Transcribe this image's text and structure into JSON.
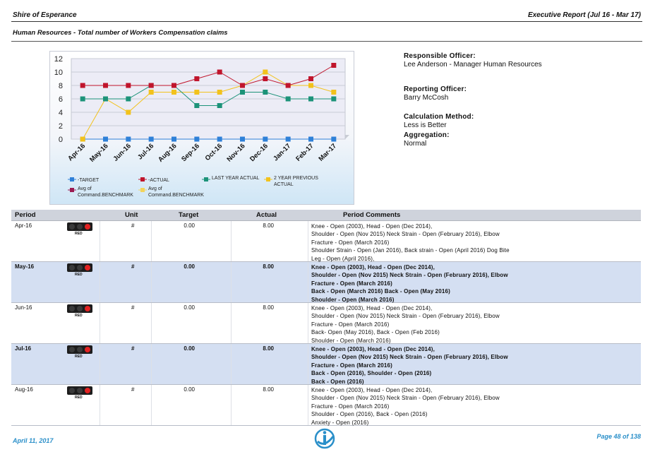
{
  "header": {
    "org": "Shire of Esperance",
    "report": "Executive Report (Jul 16 - Mar 17)"
  },
  "subtitle": "Human Resources - Total number of Workers Compensation claims",
  "info": {
    "responsible_label": "Responsible Officer:",
    "responsible_value": "Lee Anderson - Manager Human Resources",
    "reporting_label": "Reporting Officer:",
    "reporting_value": "Barry McCosh",
    "calc_label": "Calculation Method:",
    "calc_value": "Less is Better",
    "agg_label": "Aggregation:",
    "agg_value": "Normal"
  },
  "chart_data": {
    "type": "line",
    "categories": [
      "Apr-16",
      "May-16",
      "Jun-16",
      "Jul-16",
      "Aug-16",
      "Sep-16",
      "Oct-16",
      "Nov-16",
      "Dec-16",
      "Jan-17",
      "Feb-17",
      "Mar-17"
    ],
    "ylim": [
      0,
      12
    ],
    "yticks": [
      0,
      2,
      4,
      6,
      8,
      10,
      12
    ],
    "grid": true,
    "legend_position": "bottom",
    "series": [
      {
        "name": "TARGET",
        "color": "#2f80d8",
        "values": [
          0,
          0,
          0,
          0,
          0,
          0,
          0,
          0,
          0,
          0,
          0,
          0
        ]
      },
      {
        "name": "ACTUAL",
        "color": "#c0152c",
        "values": [
          8,
          8,
          8,
          8,
          8,
          9,
          10,
          8,
          9,
          8,
          9,
          11
        ]
      },
      {
        "name": "LAST YEAR ACTUAL",
        "color": "#1c9379",
        "values": [
          6,
          6,
          6,
          8,
          8,
          5,
          5,
          7,
          7,
          6,
          6,
          6
        ]
      },
      {
        "name": "2 YEAR PREVIOUS ACTUAL",
        "color": "#f2c21c",
        "values": [
          0,
          6,
          4,
          7,
          7,
          7,
          7,
          8,
          10,
          8,
          8,
          7
        ]
      }
    ],
    "extra_legend": [
      {
        "name": "Avg of Command.BENCHMARK",
        "color": "#9b1a52"
      },
      {
        "name": "Avg of Command.BENCHMARK",
        "color": "#f2d45c"
      }
    ]
  },
  "table": {
    "headers": {
      "period": "Period",
      "unit": "Unit",
      "target": "Target",
      "actual": "Actual",
      "comments": "Period Comments"
    },
    "status_label": "RED",
    "rows": [
      {
        "period": "Apr-16",
        "unit": "#",
        "target": "0.00",
        "actual": "8.00",
        "comments": [
          "Knee - Open (2003), Head - Open (Dec 2014),",
          "Shoulder - Open (Nov 2015) Neck Strain - Open (February 2016), Elbow",
          "Fracture - Open (March 2016)",
          "Shoulder Strain - Open (Jan 2016), Back strain - Open (April 2016) Dog Bite",
          "Leg - Open (April 2016),"
        ]
      },
      {
        "period": "May-16",
        "unit": "#",
        "target": "0.00",
        "actual": "8.00",
        "comments": [
          "Knee - Open (2003), Head - Open (Dec 2014),",
          "Shoulder - Open (Nov 2015) Neck Strain - Open (February 2016), Elbow",
          "Fracture - Open (March 2016)",
          "Back - Open (March 2016) Back - Open (May 2016)",
          "Shoulder - Open (March 2016)"
        ]
      },
      {
        "period": "Jun-16",
        "unit": "#",
        "target": "0.00",
        "actual": "8.00",
        "comments": [
          "Knee - Open (2003), Head - Open (Dec 2014),",
          "Shoulder - Open (Nov 2015) Neck Strain - Open (February 2016), Elbow",
          "Fracture - Open (March 2016)",
          "Back- Open (May 2016), Back - Open (Feb 2016)",
          "Shoulder - Open (March 2016)"
        ]
      },
      {
        "period": "Jul-16",
        "unit": "#",
        "target": "0.00",
        "actual": "8.00",
        "comments": [
          "Knee - Open (2003), Head - Open (Dec 2014),",
          "Shoulder - Open (Nov 2015) Neck Strain - Open (February 2016), Elbow",
          "Fracture - Open (March 2016)",
          "Back - Open (2016), Shoulder - Open (2016)",
          "Back - Open (2016)"
        ]
      },
      {
        "period": "Aug-16",
        "unit": "#",
        "target": "0.00",
        "actual": "8.00",
        "comments": [
          "Knee - Open (2003), Head - Open (Dec 2014),",
          "Shoulder - Open (Nov 2015) Neck Strain - Open (February 2016), Elbow",
          "Fracture - Open (March 2016)",
          "Shoulder - Open (2016), Back - Open (2016)",
          "Anxiety - Open (2016)"
        ]
      }
    ]
  },
  "footer": {
    "date": "April 11, 2017",
    "page": "Page 48 of 138"
  }
}
